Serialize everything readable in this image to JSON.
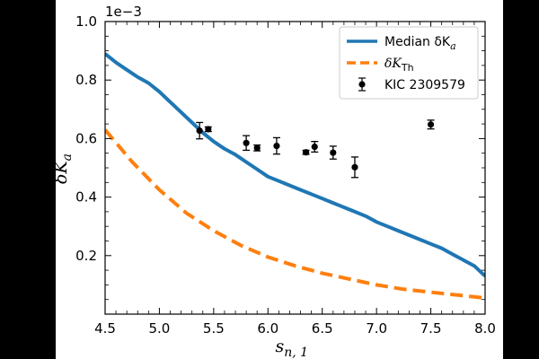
{
  "chart_data": {
    "type": "line",
    "xlabel_main": "s",
    "xlabel_sub": "n, 1",
    "ylabel_main": "δK",
    "ylabel_sub": "a",
    "y_offset_label": "1e−3",
    "xlim": [
      4.5,
      8.0
    ],
    "ylim": [
      0.0,
      1.0
    ],
    "x_ticks": [
      "4.5",
      "5.0",
      "5.5",
      "6.0",
      "6.5",
      "7.0",
      "7.5",
      "8.0"
    ],
    "y_ticks": [
      "0.2",
      "0.4",
      "0.6",
      "0.8",
      "1.0"
    ],
    "legend_position": "top-right",
    "series": [
      {
        "name_main": "Median δK",
        "name_sub": "a",
        "style": "solid",
        "color": "#1f77b4",
        "x": [
          4.5,
          4.6,
          4.7,
          4.8,
          4.9,
          5.0,
          5.1,
          5.2,
          5.3,
          5.4,
          5.5,
          5.6,
          5.7,
          5.8,
          5.9,
          6.0,
          6.1,
          6.2,
          6.3,
          6.4,
          6.5,
          6.6,
          6.7,
          6.8,
          6.9,
          7.0,
          7.1,
          7.2,
          7.3,
          7.4,
          7.5,
          7.6,
          7.7,
          7.8,
          7.9,
          8.0
        ],
        "y": [
          0.89,
          0.86,
          0.835,
          0.81,
          0.79,
          0.76,
          0.725,
          0.69,
          0.655,
          0.62,
          0.59,
          0.565,
          0.545,
          0.52,
          0.495,
          0.47,
          0.455,
          0.44,
          0.425,
          0.41,
          0.395,
          0.38,
          0.365,
          0.35,
          0.335,
          0.315,
          0.3,
          0.285,
          0.27,
          0.255,
          0.24,
          0.225,
          0.205,
          0.185,
          0.165,
          0.13
        ]
      },
      {
        "name_main": "δK",
        "name_sub": "Th",
        "style": "dashed",
        "color": "#ff7f0e",
        "x": [
          4.5,
          4.75,
          5.0,
          5.25,
          5.5,
          5.75,
          6.0,
          6.25,
          6.5,
          6.75,
          7.0,
          7.25,
          7.5,
          7.75,
          8.0
        ],
        "y": [
          0.63,
          0.52,
          0.425,
          0.345,
          0.285,
          0.235,
          0.195,
          0.165,
          0.14,
          0.12,
          0.1,
          0.085,
          0.075,
          0.065,
          0.055
        ]
      }
    ],
    "points": {
      "name": "KIC 2309579",
      "color": "#000000",
      "x": [
        5.37,
        5.45,
        5.8,
        5.9,
        6.08,
        6.35,
        6.43,
        6.6,
        6.8,
        7.5
      ],
      "y": [
        0.627,
        0.632,
        0.585,
        0.568,
        0.575,
        0.553,
        0.572,
        0.552,
        0.502,
        0.648
      ],
      "err": [
        0.028,
        0.008,
        0.025,
        0.01,
        0.028,
        0.007,
        0.018,
        0.022,
        0.035,
        0.015
      ]
    }
  }
}
